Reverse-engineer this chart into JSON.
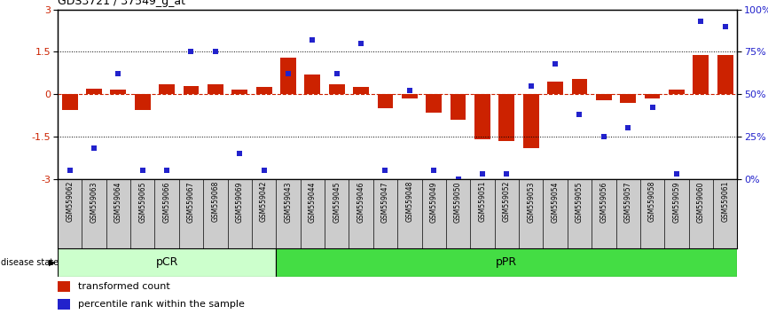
{
  "title": "GDS3721 / 37549_g_at",
  "samples": [
    "GSM559062",
    "GSM559063",
    "GSM559064",
    "GSM559065",
    "GSM559066",
    "GSM559067",
    "GSM559068",
    "GSM559069",
    "GSM559042",
    "GSM559043",
    "GSM559044",
    "GSM559045",
    "GSM559046",
    "GSM559047",
    "GSM559048",
    "GSM559049",
    "GSM559050",
    "GSM559051",
    "GSM559052",
    "GSM559053",
    "GSM559054",
    "GSM559055",
    "GSM559056",
    "GSM559057",
    "GSM559058",
    "GSM559059",
    "GSM559060",
    "GSM559061"
  ],
  "bar_values": [
    -0.55,
    0.2,
    0.15,
    -0.55,
    0.35,
    0.3,
    0.35,
    0.15,
    0.25,
    1.3,
    0.7,
    0.35,
    0.25,
    -0.5,
    -0.15,
    -0.65,
    -0.9,
    -1.6,
    -1.65,
    -1.9,
    0.45,
    0.55,
    -0.2,
    -0.3,
    -0.15,
    0.15,
    1.4,
    1.4
  ],
  "percentile_values": [
    5,
    18,
    62,
    5,
    5,
    75,
    75,
    15,
    5,
    62,
    82,
    62,
    80,
    5,
    52,
    5,
    0,
    3,
    3,
    55,
    68,
    38,
    25,
    30,
    42,
    3,
    93,
    90
  ],
  "pcr_count": 9,
  "ppr_count": 19,
  "ylim": [
    -3,
    3
  ],
  "y2lim": [
    0,
    100
  ],
  "yticks_left": [
    -3,
    -1.5,
    0,
    1.5,
    3
  ],
  "yticks_right": [
    0,
    25,
    50,
    75,
    100
  ],
  "bar_color": "#cc2200",
  "dot_color": "#2222cc",
  "pcr_color": "#ccffcc",
  "ppr_color": "#44dd44",
  "label_bg_color": "#cccccc",
  "legend_bar_label": "transformed count",
  "legend_dot_label": "percentile rank within the sample",
  "disease_state_label": "disease state",
  "pcr_label": "pCR",
  "ppr_label": "pPR"
}
